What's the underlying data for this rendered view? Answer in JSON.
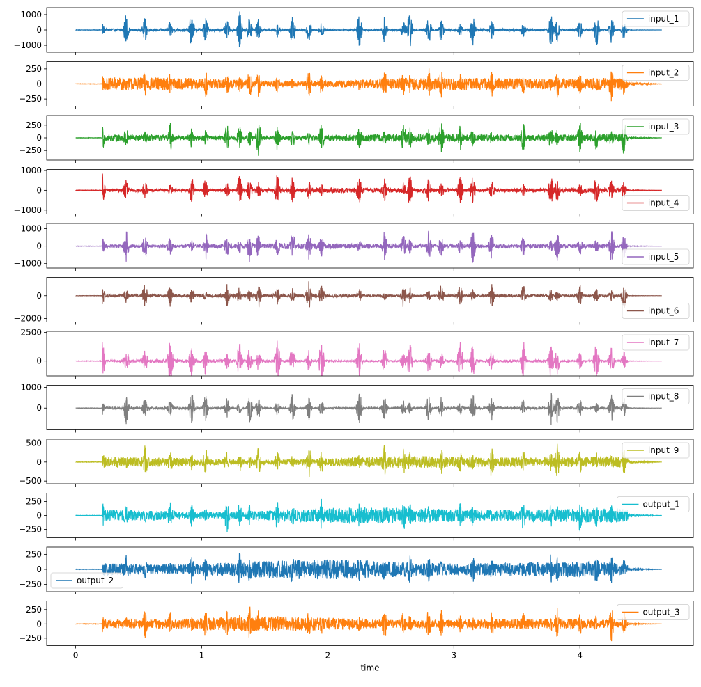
{
  "chart_data": {
    "type": "line",
    "xlabel": "time",
    "xlim": [
      -0.23,
      4.9
    ],
    "x_ticks": [
      0,
      1,
      2,
      3,
      4
    ],
    "x_end": 4.65,
    "signal_start": 0.21,
    "panels": [
      {
        "name": "input_1",
        "color": "#1f77b4",
        "ylim": [
          -1450,
          1450
        ],
        "yticks": [
          -1000,
          0,
          1000
        ],
        "peak": 1400,
        "base_amp": 100,
        "legend": "upper-right"
      },
      {
        "name": "input_2",
        "color": "#ff7f0e",
        "ylim": [
          -370,
          370
        ],
        "yticks": [
          -250,
          0,
          250
        ],
        "peak": 320,
        "base_amp": 120,
        "legend": "upper-right"
      },
      {
        "name": "input_3",
        "color": "#2ca02c",
        "ylim": [
          -440,
          440
        ],
        "yticks": [
          -250,
          0,
          250
        ],
        "peak": 400,
        "base_amp": 80,
        "legend": "upper-right"
      },
      {
        "name": "input_4",
        "color": "#d62728",
        "ylim": [
          -1200,
          1050
        ],
        "yticks": [
          -1000,
          0,
          1000
        ],
        "peak": 1000,
        "base_amp": 120,
        "legend": "lower-right"
      },
      {
        "name": "input_5",
        "color": "#9467bd",
        "ylim": [
          -1250,
          1300
        ],
        "yticks": [
          -1000,
          0,
          1000
        ],
        "peak": 1150,
        "base_amp": 150,
        "legend": "lower-right"
      },
      {
        "name": "input_6",
        "color": "#8c564b",
        "ylim": [
          -2300,
          1600
        ],
        "yticks": [
          -2000,
          0
        ],
        "peak": 1400,
        "base_amp": 150,
        "legend": "lower-right"
      },
      {
        "name": "input_7",
        "color": "#e377c2",
        "ylim": [
          -1300,
          2600
        ],
        "yticks": [
          0,
          2500
        ],
        "peak": 2300,
        "base_amp": 150,
        "legend": "upper-right"
      },
      {
        "name": "input_8",
        "color": "#7f7f7f",
        "ylim": [
          -1050,
          1100
        ],
        "yticks": [
          0,
          1000
        ],
        "peak": 950,
        "base_amp": 70,
        "legend": "upper-right"
      },
      {
        "name": "input_9",
        "color": "#bcbd22",
        "ylim": [
          -570,
          600
        ],
        "yticks": [
          -500,
          0,
          500
        ],
        "peak": 520,
        "base_amp": 160,
        "legend": "upper-right"
      },
      {
        "name": "output_1",
        "color": "#17becf",
        "ylim": [
          -400,
          400
        ],
        "yticks": [
          -250,
          0,
          250
        ],
        "peak": 350,
        "base_amp": 140,
        "legend": "upper-right"
      },
      {
        "name": "output_2",
        "color": "#1f77b4",
        "ylim": [
          -370,
          370
        ],
        "yticks": [
          -250,
          0,
          250
        ],
        "peak": 320,
        "base_amp": 150,
        "legend": "lower-left"
      },
      {
        "name": "output_3",
        "color": "#ff7f0e",
        "ylim": [
          -380,
          400
        ],
        "yticks": [
          -250,
          0,
          250
        ],
        "peak": 350,
        "base_amp": 120,
        "legend": "upper-right"
      }
    ],
    "bursts": [
      0.21,
      0.4,
      0.55,
      0.75,
      0.92,
      1.03,
      1.2,
      1.3,
      1.38,
      1.45,
      1.6,
      1.72,
      1.85,
      1.95,
      2.25,
      2.45,
      2.6,
      2.65,
      2.8,
      2.9,
      3.05,
      3.15,
      3.3,
      3.55,
      3.77,
      3.82,
      4.0,
      4.13,
      4.25,
      4.35
    ]
  }
}
